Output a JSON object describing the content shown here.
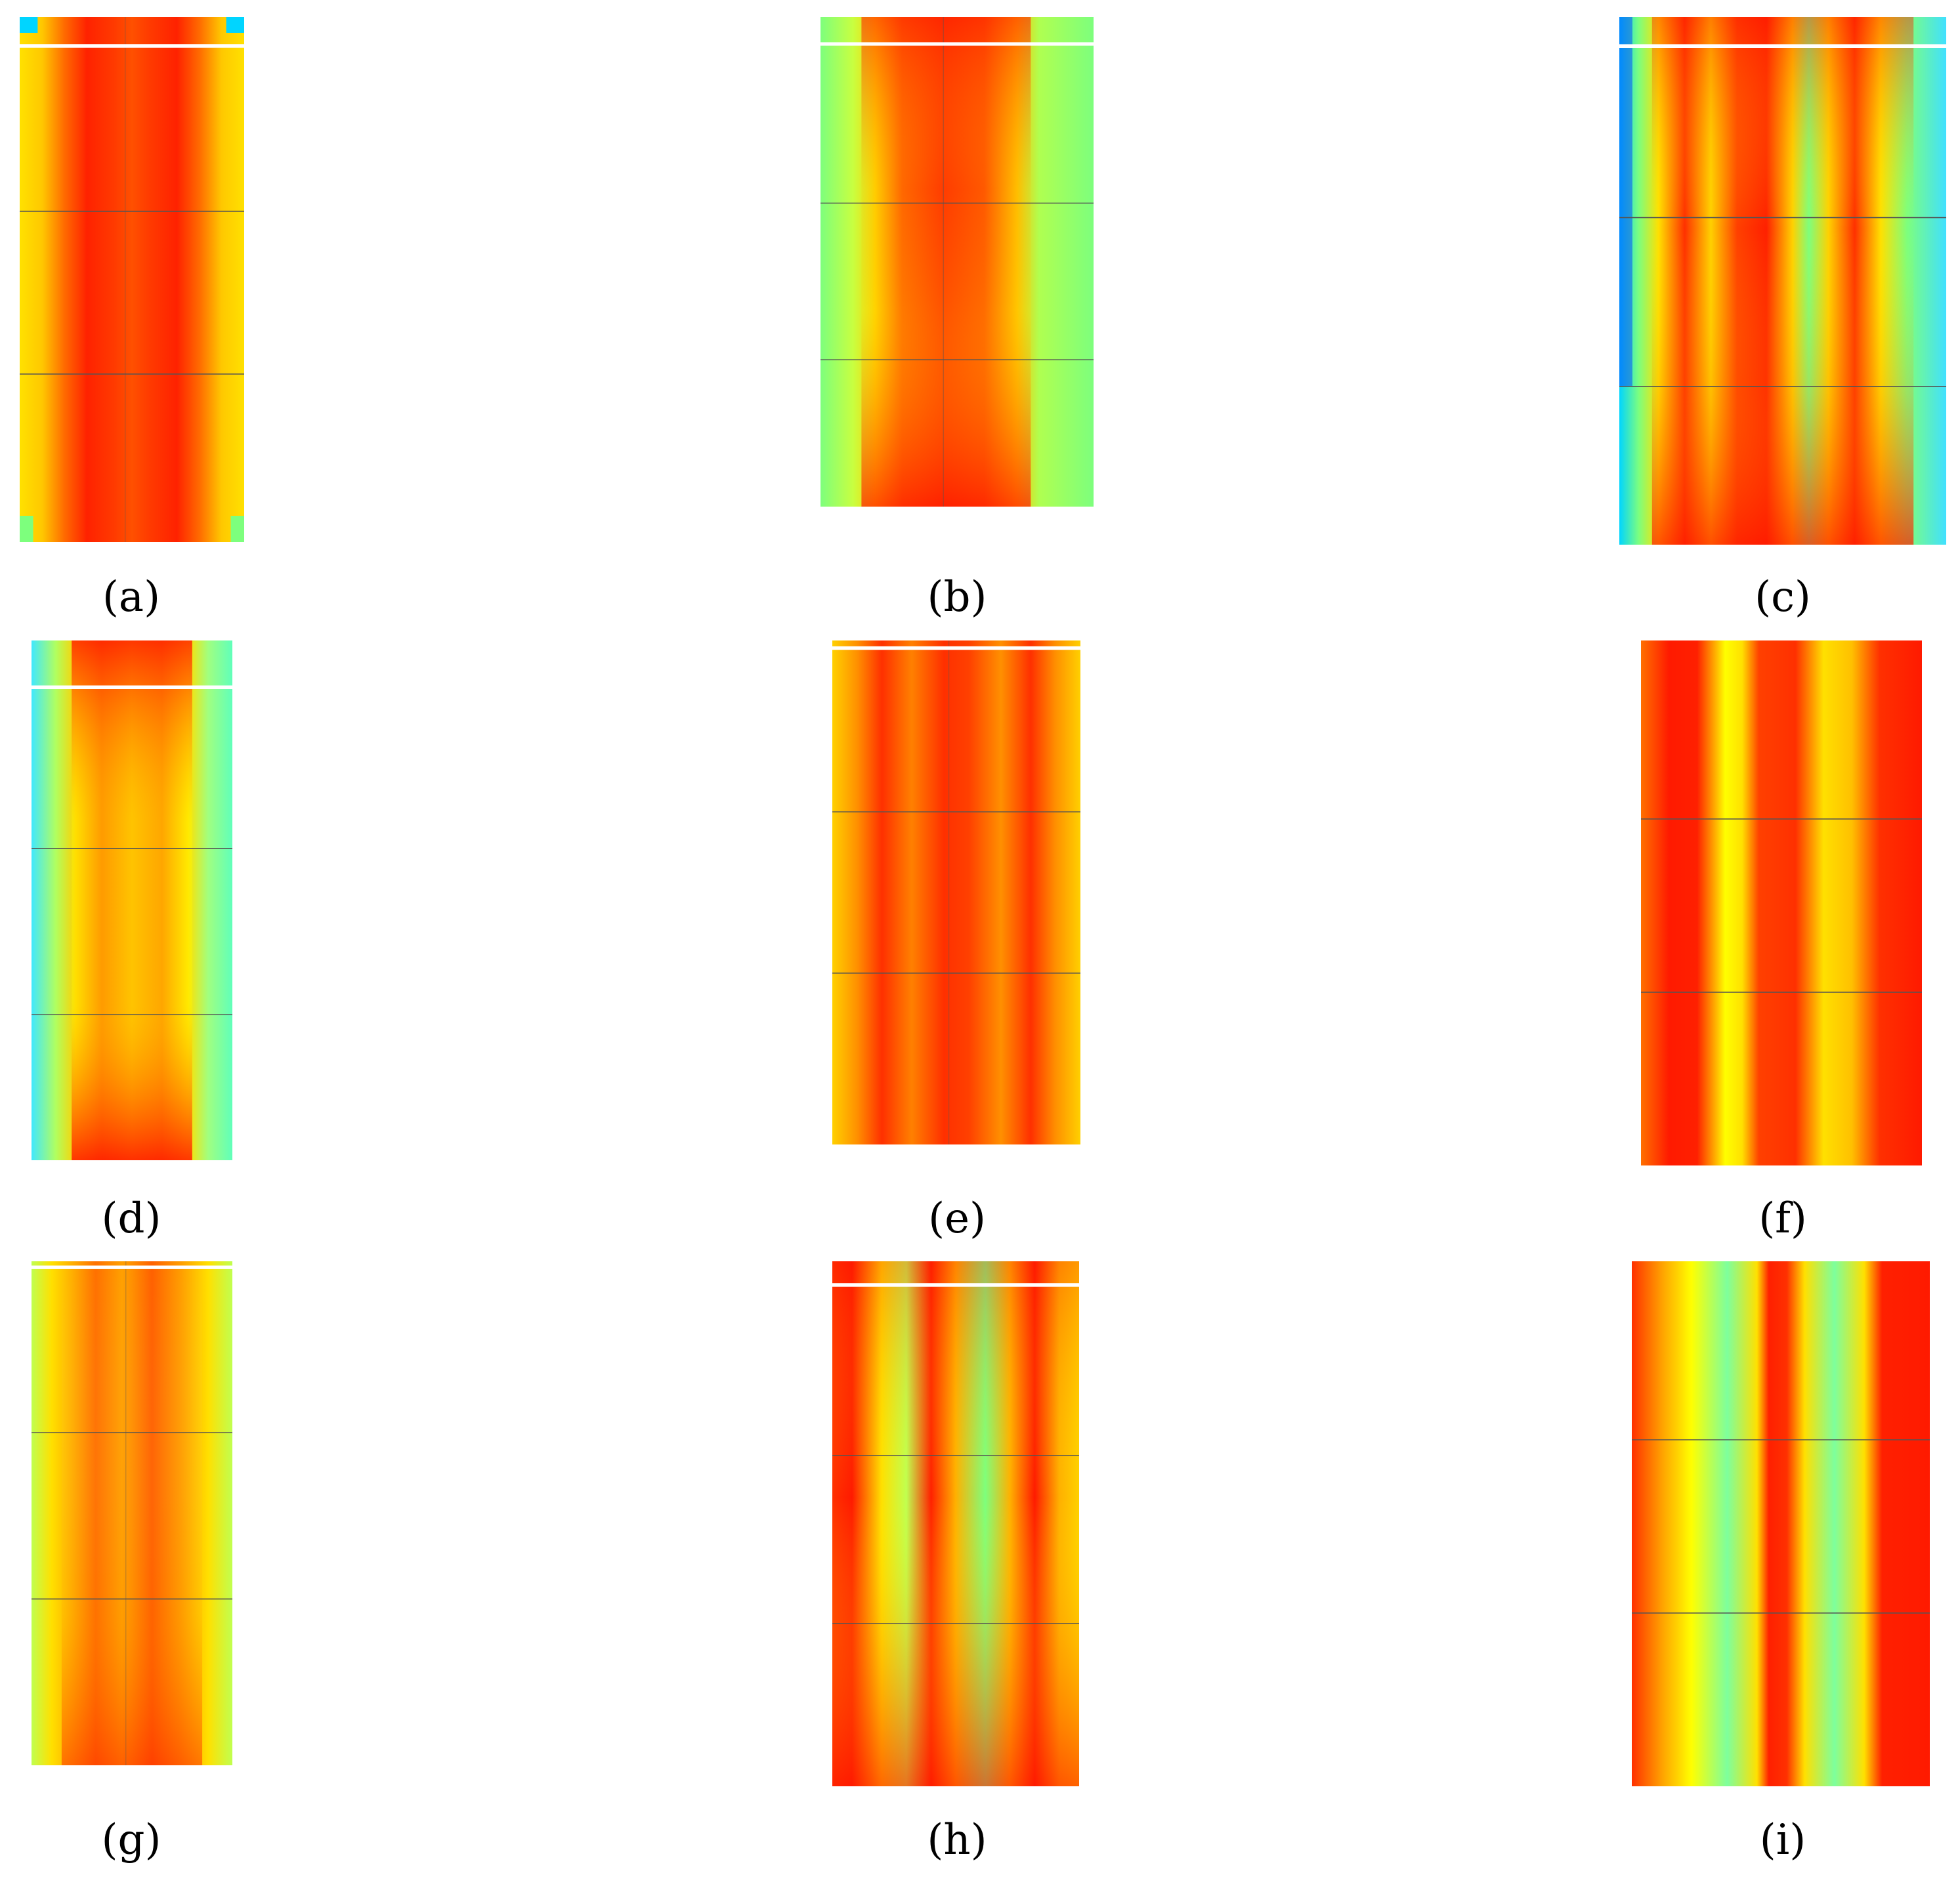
{
  "captions": {
    "a": "(a)",
    "b": "(b)",
    "c": "(c)",
    "d": "(d)",
    "e": "(e)",
    "f": "(f)",
    "g": "(g)",
    "h": "(h)",
    "i": "(i)"
  },
  "colors": {
    "red": "#ff1a00",
    "orange": "#ff8a00",
    "yellow": "#ffff00",
    "green": "#7dff7d",
    "cyan": "#00e5ff",
    "blue": "#0040ff"
  }
}
